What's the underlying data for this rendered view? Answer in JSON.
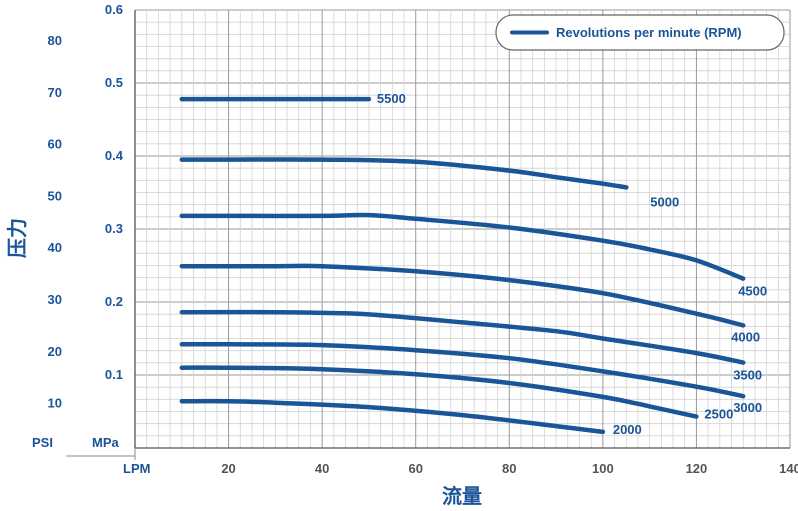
{
  "chart_data": {
    "type": "line",
    "x_unit_label": "LPM",
    "xlabel": "流量",
    "ylabel": "压力",
    "y_unit_label_psi": "PSI",
    "y_unit_label_mpa": "MPa",
    "xlim": [
      0,
      140
    ],
    "x_ticks": [
      20,
      40,
      60,
      80,
      100,
      120,
      140
    ],
    "mpa_lim": [
      0,
      0.6
    ],
    "mpa_ticks": [
      "0.1",
      "0.2",
      "0.3",
      "0.4",
      "0.5",
      "0.6"
    ],
    "psi_ticks": [
      "10",
      "20",
      "30",
      "40",
      "50",
      "60",
      "70",
      "80"
    ],
    "grid": true,
    "legend": {
      "label": "Revolutions per minute (RPM)",
      "position": "top-right"
    },
    "line_color": "#1a5597",
    "series": [
      {
        "name": "5500",
        "x": [
          10,
          20,
          30,
          40,
          50
        ],
        "y": [
          0.478,
          0.478,
          0.478,
          0.478,
          0.478
        ]
      },
      {
        "name": "5000",
        "x": [
          10,
          20,
          40,
          60,
          80,
          90,
          100,
          105
        ],
        "y": [
          0.395,
          0.395,
          0.395,
          0.392,
          0.38,
          0.371,
          0.362,
          0.357
        ]
      },
      {
        "name": "4500",
        "x": [
          10,
          20,
          40,
          50,
          60,
          80,
          100,
          110,
          120,
          130
        ],
        "y": [
          0.318,
          0.318,
          0.318,
          0.319,
          0.314,
          0.302,
          0.284,
          0.272,
          0.257,
          0.232
        ]
      },
      {
        "name": "4000",
        "x": [
          10,
          30,
          40,
          60,
          80,
          100,
          120,
          130
        ],
        "y": [
          0.249,
          0.249,
          0.249,
          0.242,
          0.23,
          0.212,
          0.184,
          0.168
        ]
      },
      {
        "name": "3500",
        "x": [
          10,
          30,
          40,
          50,
          70,
          90,
          100,
          120,
          130
        ],
        "y": [
          0.186,
          0.186,
          0.185,
          0.183,
          0.172,
          0.16,
          0.15,
          0.13,
          0.117
        ]
      },
      {
        "name": "3000",
        "x": [
          10,
          20,
          40,
          60,
          80,
          100,
          120,
          130
        ],
        "y": [
          0.142,
          0.142,
          0.141,
          0.134,
          0.123,
          0.105,
          0.084,
          0.071
        ]
      },
      {
        "name": "2500",
        "x": [
          10,
          20,
          40,
          60,
          80,
          100,
          110,
          120
        ],
        "y": [
          0.11,
          0.11,
          0.108,
          0.101,
          0.089,
          0.07,
          0.057,
          0.043
        ]
      },
      {
        "name": "2000",
        "x": [
          10,
          20,
          30,
          50,
          70,
          90,
          100
        ],
        "y": [
          0.064,
          0.064,
          0.062,
          0.056,
          0.045,
          0.03,
          0.022
        ]
      }
    ]
  }
}
